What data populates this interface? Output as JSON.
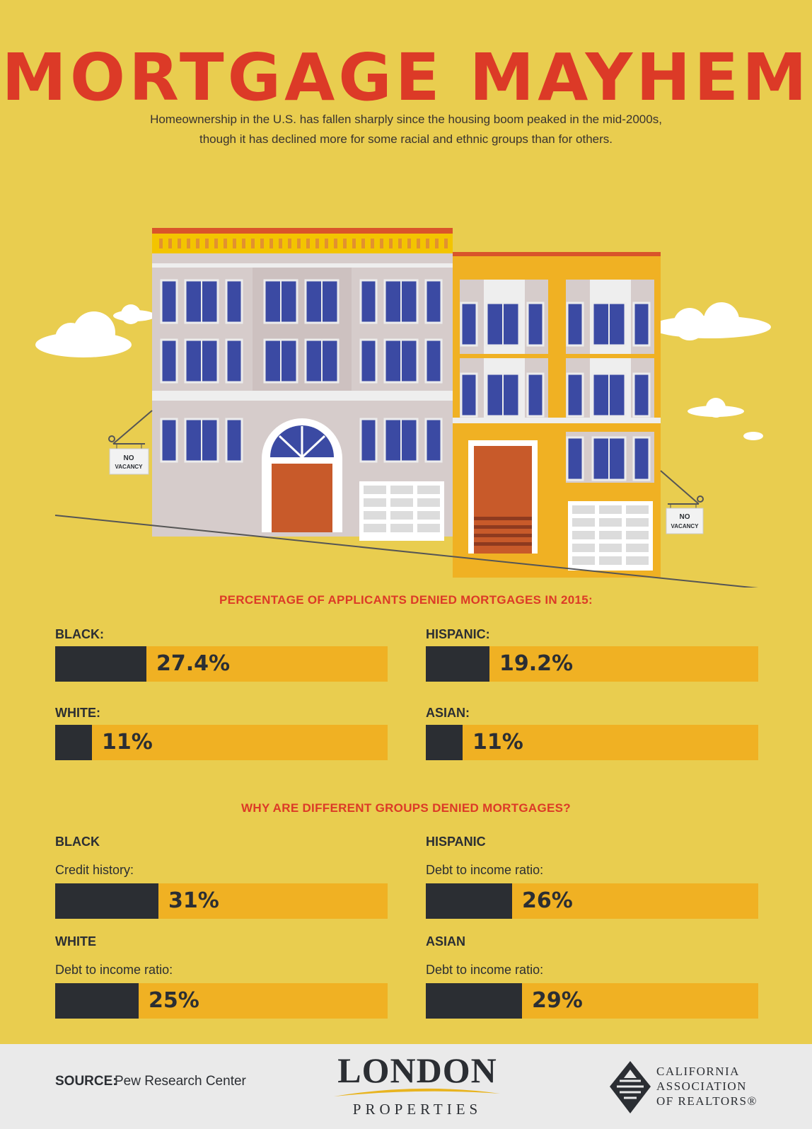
{
  "header": {
    "title": "MORTGAGE MAYHEM",
    "subtitle_line1": "Homeownership in the U.S. has fallen sharply since the housing boom peaked in the mid-2000s,",
    "subtitle_line2": "though it has declined more for some racial and ethnic groups than for others."
  },
  "illustration": {
    "sign_left_line1": "NO",
    "sign_left_line2": "VACANCY",
    "sign_right_line1": "NO",
    "sign_right_line2": "VACANCY"
  },
  "denial": {
    "heading": "PERCENTAGE OF APPLICANTS DENIED MORTGAGES IN 2015:",
    "items": [
      {
        "label": "BLACK:",
        "value_text": "27.4%",
        "value": 27.4
      },
      {
        "label": "HISPANIC:",
        "value_text": "19.2%",
        "value": 19.2
      },
      {
        "label": "WHITE:",
        "value_text": "11%",
        "value": 11
      },
      {
        "label": "ASIAN:",
        "value_text": "11%",
        "value": 11
      }
    ]
  },
  "reasons": {
    "heading": "WHY ARE DIFFERENT GROUPS DENIED MORTGAGES?",
    "items": [
      {
        "group": "BLACK",
        "reason": "Credit history:",
        "value_text": "31%",
        "value": 31
      },
      {
        "group": "HISPANIC",
        "reason": "Debt to income ratio:",
        "value_text": "26%",
        "value": 26
      },
      {
        "group": "WHITE",
        "reason": "Debt to income ratio:",
        "value_text": "25%",
        "value": 25
      },
      {
        "group": "ASIAN",
        "reason": "Debt to income ratio:",
        "value_text": "29%",
        "value": 29
      }
    ]
  },
  "footer": {
    "source_label": "SOURCE:",
    "source_value": "Pew Research Center",
    "logo_main": "LONDON",
    "logo_sub": "PROPERTIES",
    "car_line1": "CALIFORNIA",
    "car_line2": "ASSOCIATION",
    "car_line3": "OF REALTORS®"
  },
  "colors": {
    "background": "#e9cd4f",
    "accent_red": "#dc3a27",
    "bar_dark": "#2b2e33",
    "bar_gold": "#f0b123"
  }
}
